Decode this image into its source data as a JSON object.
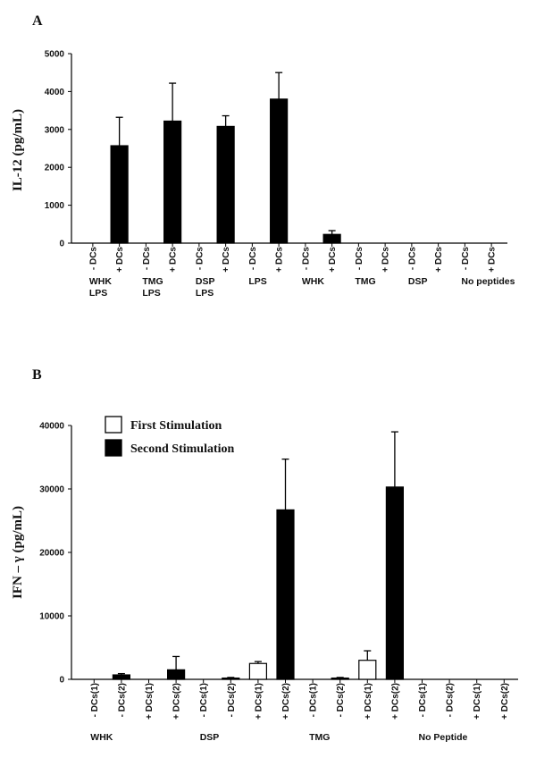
{
  "panels": {
    "a_label": "A",
    "b_label": "B"
  },
  "chart_data": [
    {
      "type": "bar",
      "ylabel": "IL-12 (pg/mL)",
      "ylim": [
        0,
        5000
      ],
      "yticks": [
        0,
        1000,
        2000,
        3000,
        4000,
        5000
      ],
      "categories": [
        "- DCs",
        "+ DCs",
        "- DCs",
        "+ DCs",
        "- DCs",
        "+ DCs",
        "- DCs",
        "+ DCs",
        "- DCs",
        "+ DCs",
        "- DCs",
        "+ DCs",
        "- DCs",
        "+ DCs",
        "- DCs",
        "+ DCs"
      ],
      "groups": [
        {
          "lines": [
            "WHK",
            "LPS"
          ],
          "from": 0,
          "to": 1
        },
        {
          "lines": [
            "TMG",
            "LPS"
          ],
          "from": 2,
          "to": 3
        },
        {
          "lines": [
            "DSP",
            "LPS"
          ],
          "from": 4,
          "to": 5
        },
        {
          "lines": [
            "LPS"
          ],
          "from": 6,
          "to": 7
        },
        {
          "lines": [
            "WHK"
          ],
          "from": 8,
          "to": 9
        },
        {
          "lines": [
            "TMG"
          ],
          "from": 10,
          "to": 11
        },
        {
          "lines": [
            "DSP"
          ],
          "from": 12,
          "to": 13
        },
        {
          "lines": [
            "No peptides"
          ],
          "from": 14,
          "to": 15
        }
      ],
      "values": [
        0,
        2570,
        0,
        3220,
        0,
        3080,
        0,
        3800,
        0,
        230,
        0,
        0,
        0,
        0,
        0,
        0
      ],
      "errors": [
        0,
        750,
        0,
        1000,
        0,
        280,
        0,
        700,
        0,
        100,
        0,
        0,
        0,
        0,
        0,
        0
      ],
      "color": "#000000",
      "grid": false
    },
    {
      "type": "bar",
      "ylabel": "IFN – γ (pg/mL)",
      "ylim": [
        0,
        40000
      ],
      "yticks": [
        0,
        10000,
        20000,
        30000,
        40000
      ],
      "categories": [
        "- DCs(1)",
        "- DCs(2)",
        "+ DCs(1)",
        "+ DCs(2)",
        "- DCs(1)",
        "- DCs(2)",
        "+ DCs(1)",
        "+ DCs(2)",
        "- DCs(1)",
        "- DCs(2)",
        "+ DCs(1)",
        "+ DCs(2)",
        "- DCs(1)",
        "- DCs(2)",
        "+ DCs(1)",
        "+ DCs(2)"
      ],
      "groups": [
        {
          "lines": [
            "WHK"
          ],
          "from": 0,
          "to": 3
        },
        {
          "lines": [
            "DSP"
          ],
          "from": 4,
          "to": 7
        },
        {
          "lines": [
            "TMG"
          ],
          "from": 8,
          "to": 11
        },
        {
          "lines": [
            "No Peptide"
          ],
          "from": 12,
          "to": 15
        }
      ],
      "series": [
        {
          "name": "First Stimulation",
          "color": "#ffffff"
        },
        {
          "name": "Second Stimulation",
          "color": "#000000"
        }
      ],
      "bar_series": [
        1,
        1,
        0,
        1,
        1,
        1,
        0,
        1,
        1,
        1,
        0,
        1,
        1,
        1,
        0,
        1
      ],
      "values": [
        0,
        700,
        0,
        1500,
        0,
        200,
        2500,
        26700,
        0,
        200,
        3000,
        30300,
        0,
        0,
        0,
        0
      ],
      "errors": [
        0,
        200,
        0,
        2100,
        0,
        100,
        300,
        8000,
        0,
        100,
        1500,
        8700,
        0,
        0,
        0,
        0
      ],
      "legend_position": "top-left",
      "grid": false
    }
  ]
}
